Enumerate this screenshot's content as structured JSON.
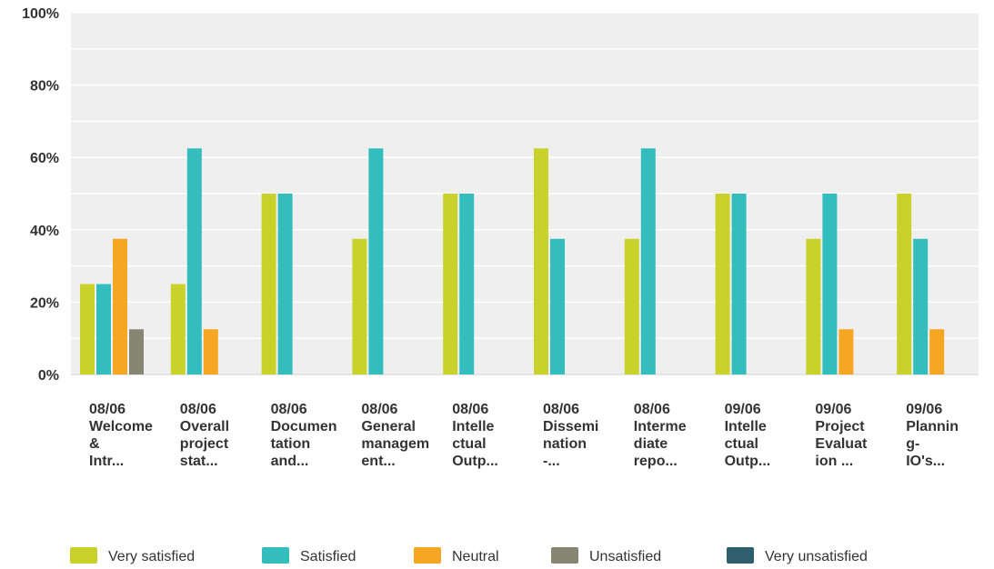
{
  "chart_data": {
    "type": "bar",
    "ylim": [
      0,
      100
    ],
    "y_ticks": [
      "0%",
      "20%",
      "40%",
      "60%",
      "80%",
      "100%"
    ],
    "grid": true,
    "legend_position": "bottom",
    "categories": [
      [
        "08/06",
        "Welcome",
        "&",
        "Intr..."
      ],
      [
        "08/06",
        "Overall",
        "project",
        "stat..."
      ],
      [
        "08/06",
        "Documen",
        "tation",
        "and..."
      ],
      [
        "08/06",
        "General",
        "managem",
        "ent..."
      ],
      [
        "08/06",
        "Intelle",
        "ctual",
        "Outp..."
      ],
      [
        "08/06",
        "Dissemi",
        "nation",
        "-..."
      ],
      [
        "08/06",
        "Interme",
        "diate",
        "repo..."
      ],
      [
        "09/06",
        "Intelle",
        "ctual",
        "Outp..."
      ],
      [
        "09/06",
        "Project",
        "Evaluat",
        "ion ..."
      ],
      [
        "09/06",
        "Plannin",
        "g-",
        "IO's..."
      ]
    ],
    "series": [
      {
        "name": "Very satisfied",
        "color": "#c9d22b",
        "values": [
          25,
          25,
          50,
          37.5,
          50,
          62.5,
          37.5,
          50,
          37.5,
          50
        ]
      },
      {
        "name": "Satisfied",
        "color": "#33bdbd",
        "values": [
          25,
          62.5,
          50,
          62.5,
          50,
          37.5,
          62.5,
          50,
          50,
          37.5
        ]
      },
      {
        "name": "Neutral",
        "color": "#f5a623",
        "values": [
          37.5,
          12.5,
          0,
          0,
          0,
          0,
          0,
          0,
          12.5,
          12.5
        ]
      },
      {
        "name": "Unsatisfied",
        "color": "#878672",
        "values": [
          12.5,
          0,
          0,
          0,
          0,
          0,
          0,
          0,
          0,
          0
        ]
      },
      {
        "name": "Very unsatisfied",
        "color": "#2f5f6f",
        "values": [
          0,
          0,
          0,
          0,
          0,
          0,
          0,
          0,
          0,
          0
        ]
      }
    ]
  }
}
